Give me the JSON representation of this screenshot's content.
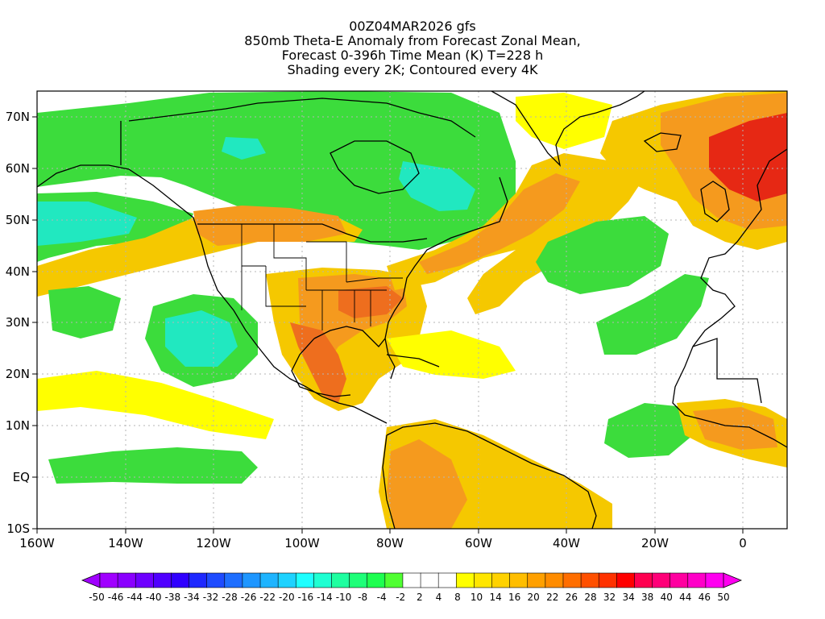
{
  "title": {
    "line1": "00Z04MAR2026 gfs",
    "line2": "850mb Theta-E Anomaly from Forecast Zonal Mean,",
    "line3": "Forecast 0-396h Time Mean (K) T=228 h",
    "line4": "Shading every 2K; Contoured every 4K"
  },
  "map": {
    "lon_range": [
      -160,
      10
    ],
    "lat_range": [
      -10,
      75
    ],
    "lon_ticks": [
      "160W",
      "140W",
      "120W",
      "100W",
      "80W",
      "60W",
      "40W",
      "20W",
      "0"
    ],
    "lat_ticks": [
      "70N",
      "60N",
      "50N",
      "40N",
      "30N",
      "20N",
      "10N",
      "EQ",
      "10S"
    ],
    "gridlines": true
  },
  "colorbar": {
    "labels": [
      "-50",
      "-46",
      "-44",
      "-40",
      "-38",
      "-34",
      "-32",
      "-28",
      "-26",
      "-22",
      "-20",
      "-16",
      "-14",
      "-10",
      "-8",
      "-4",
      "-2",
      "2",
      "4",
      "8",
      "10",
      "14",
      "16",
      "20",
      "22",
      "26",
      "28",
      "32",
      "34",
      "38",
      "40",
      "44",
      "46",
      "50"
    ],
    "colors": [
      "#a000ff",
      "#8a00ff",
      "#6e00ff",
      "#5000ff",
      "#3000ff",
      "#1e28ff",
      "#1e4bff",
      "#1e6eff",
      "#1e96ff",
      "#1eb4ff",
      "#1ed2ff",
      "#1effff",
      "#1effd2",
      "#1effa0",
      "#1eff78",
      "#1eff50",
      "#50ff32",
      "#ffffff",
      "#ffffff",
      "#ffffff",
      "#ffff00",
      "#ffe600",
      "#ffd200",
      "#ffbe00",
      "#ffa000",
      "#ff8c00",
      "#ff6e00",
      "#ff5000",
      "#ff3200",
      "#ff0000",
      "#ff0050",
      "#ff0078",
      "#ff00a0",
      "#ff00c8",
      "#ff00f0"
    ]
  },
  "colors": {
    "green": "#3cdc3c",
    "light_green": "#66ff33",
    "cyan": "#21e8c0",
    "yellow": "#ffff00",
    "gold": "#f5c800",
    "orange": "#f59a1e",
    "dark_orange": "#ee6e1e",
    "red": "#e62814"
  }
}
